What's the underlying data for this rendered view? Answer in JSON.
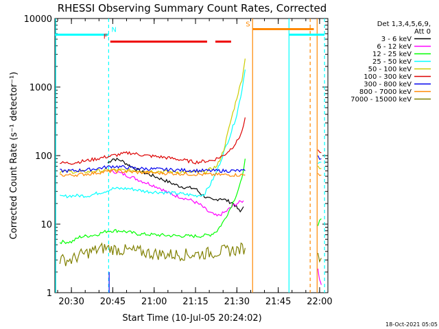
{
  "chart_data": {
    "type": "line",
    "title": "RHESSI Observing Summary Count Rates, Corrected",
    "ylabel": "Corrected Count Rate (s⁻¹ detector⁻¹)",
    "xlabel": "Start Time (10-Jul-05 20:24:02)",
    "timestamp": "18-Oct-2021 05:05",
    "y_scale": "log",
    "ylim": [
      1,
      10000
    ],
    "xlim": [
      20.4,
      22.05
    ],
    "x_ticks": [
      {
        "value": 20.5,
        "label": "20:30"
      },
      {
        "value": 20.75,
        "label": "20:45"
      },
      {
        "value": 21.0,
        "label": "21:00"
      },
      {
        "value": 21.25,
        "label": "21:15"
      },
      {
        "value": 21.5,
        "label": "21:30"
      },
      {
        "value": 21.75,
        "label": "21:45"
      },
      {
        "value": 22.0,
        "label": "22:00"
      }
    ],
    "y_ticks": [
      {
        "value": 1,
        "label": "1"
      },
      {
        "value": 10,
        "label": "10"
      },
      {
        "value": 100,
        "label": "100"
      },
      {
        "value": 1000,
        "label": "1000"
      },
      {
        "value": 10000,
        "label": "10000"
      }
    ],
    "legend": {
      "position": "right",
      "header_lines": [
        "Det 1,3,4,5,6,9,",
        "Att 0"
      ]
    },
    "series": [
      {
        "name": "3 - 6 keV",
        "color": "#000000",
        "segments": [
          [
            [
              20.72,
              78
            ],
            [
              20.75,
              90
            ],
            [
              20.8,
              85
            ],
            [
              20.85,
              72
            ],
            [
              20.9,
              62
            ],
            [
              20.95,
              55
            ],
            [
              21.0,
              50
            ],
            [
              21.05,
              45
            ],
            [
              21.1,
              40
            ],
            [
              21.15,
              36
            ],
            [
              21.2,
              34
            ],
            [
              21.25,
              33
            ],
            [
              21.28,
              28
            ],
            [
              21.32,
              24
            ],
            [
              21.36,
              22
            ],
            [
              21.4,
              24
            ],
            [
              21.44,
              22
            ],
            [
              21.48,
              20
            ],
            [
              21.52,
              15
            ],
            [
              21.54,
              18
            ]
          ]
        ]
      },
      {
        "name": "6 - 12 keV",
        "color": "#ff00ff",
        "segments": [
          [
            [
              20.73,
              60
            ],
            [
              20.78,
              57
            ],
            [
              20.83,
              52
            ],
            [
              20.88,
              47
            ],
            [
              20.93,
              42
            ],
            [
              20.98,
              38
            ],
            [
              21.03,
              34
            ],
            [
              21.08,
              29
            ],
            [
              21.13,
              26
            ],
            [
              21.18,
              24
            ],
            [
              21.23,
              22
            ],
            [
              21.28,
              19
            ],
            [
              21.33,
              15
            ],
            [
              21.38,
              13
            ],
            [
              21.43,
              15
            ],
            [
              21.47,
              18
            ],
            [
              21.5,
              20
            ],
            [
              21.54,
              22
            ]
          ],
          [
            [
              21.99,
              2.2
            ],
            [
              22.0,
              1.6
            ],
            [
              22.01,
              1.3
            ]
          ]
        ]
      },
      {
        "name": "12 - 25 keV",
        "color": "#00ff00",
        "segments": [
          [
            [
              20.43,
              5.5
            ],
            [
              20.5,
              5.5
            ],
            [
              20.55,
              6.5
            ],
            [
              20.65,
              7
            ],
            [
              20.72,
              8
            ],
            [
              20.8,
              8
            ],
            [
              20.9,
              7.2
            ],
            [
              21.0,
              7
            ],
            [
              21.1,
              6.8
            ],
            [
              21.2,
              6.7
            ],
            [
              21.28,
              6.7
            ],
            [
              21.34,
              7
            ],
            [
              21.38,
              8
            ],
            [
              21.42,
              11
            ],
            [
              21.46,
              17
            ],
            [
              21.5,
              28
            ],
            [
              21.53,
              45
            ],
            [
              21.55,
              90
            ]
          ],
          [
            [
              21.99,
              10
            ],
            [
              22.01,
              12
            ]
          ]
        ]
      },
      {
        "name": "25 - 50 keV",
        "color": "#00ffff",
        "segments": [
          [
            [
              20.43,
              25
            ],
            [
              20.5,
              26
            ],
            [
              20.6,
              26
            ],
            [
              20.7,
              30
            ],
            [
              20.75,
              33
            ],
            [
              20.85,
              33
            ],
            [
              20.95,
              30
            ],
            [
              21.05,
              29
            ],
            [
              21.15,
              28
            ],
            [
              21.25,
              26
            ],
            [
              21.3,
              27
            ],
            [
              21.34,
              38
            ],
            [
              21.38,
              60
            ],
            [
              21.42,
              110
            ],
            [
              21.46,
              200
            ],
            [
              21.5,
              400
            ],
            [
              21.53,
              900
            ],
            [
              21.55,
              1800
            ]
          ],
          [
            [
              21.99,
              80
            ],
            [
              22.01,
              80
            ]
          ]
        ]
      },
      {
        "name": "50 - 100 keV",
        "color": "#cccc00",
        "segments": [
          [
            [
              20.43,
              58
            ],
            [
              20.5,
              58
            ],
            [
              20.6,
              58
            ],
            [
              20.75,
              62
            ],
            [
              20.9,
              60
            ],
            [
              21.1,
              58
            ],
            [
              21.3,
              57
            ],
            [
              21.38,
              70
            ],
            [
              21.42,
              120
            ],
            [
              21.46,
              300
            ],
            [
              21.5,
              700
            ],
            [
              21.53,
              1300
            ],
            [
              21.55,
              2600
            ]
          ],
          [
            [
              21.99,
              70
            ],
            [
              22.01,
              65
            ]
          ]
        ]
      },
      {
        "name": "100 - 300 keV",
        "color": "#dd0000",
        "segments": [
          [
            [
              20.43,
              78
            ],
            [
              20.5,
              78
            ],
            [
              20.6,
              85
            ],
            [
              20.75,
              100
            ],
            [
              20.85,
              110
            ],
            [
              20.95,
              100
            ],
            [
              21.05,
              95
            ],
            [
              21.15,
              88
            ],
            [
              21.25,
              80
            ],
            [
              21.35,
              85
            ],
            [
              21.42,
              100
            ],
            [
              21.47,
              130
            ],
            [
              21.5,
              160
            ],
            [
              21.53,
              220
            ],
            [
              21.55,
              360
            ]
          ],
          [
            [
              21.99,
              115
            ],
            [
              22.01,
              110
            ]
          ]
        ]
      },
      {
        "name": "300 - 800 keV",
        "color": "#0000ee",
        "segments": [
          [
            [
              20.43,
              60
            ],
            [
              20.5,
              60
            ],
            [
              20.6,
              62
            ],
            [
              20.75,
              70
            ],
            [
              20.9,
              65
            ],
            [
              21.1,
              62
            ],
            [
              21.3,
              60
            ],
            [
              21.55,
              60
            ]
          ],
          [
            [
              21.99,
              95
            ],
            [
              22.01,
              90
            ]
          ]
        ]
      },
      {
        "name": "800 - 7000 keV",
        "color": "#ff8800",
        "segments": [
          [
            [
              20.43,
              52
            ],
            [
              20.5,
              52
            ],
            [
              20.6,
              54
            ],
            [
              20.75,
              60
            ],
            [
              20.9,
              57
            ],
            [
              21.1,
              55
            ],
            [
              21.3,
              53
            ],
            [
              21.55,
              52
            ]
          ],
          [
            [
              21.99,
              55
            ],
            [
              22.01,
              52
            ]
          ]
        ]
      },
      {
        "name": "7000 - 15000 keV",
        "color": "#808000",
        "segments": [
          [
            [
              20.43,
              3
            ],
            [
              20.5,
              3
            ],
            [
              20.55,
              3.5
            ],
            [
              20.62,
              4
            ],
            [
              20.7,
              4.5
            ],
            [
              20.8,
              4.2
            ],
            [
              20.9,
              4
            ],
            [
              21.0,
              3.7
            ],
            [
              21.1,
              3.6
            ],
            [
              21.2,
              3.6
            ],
            [
              21.3,
              3.7
            ],
            [
              21.4,
              4
            ],
            [
              21.5,
              4.2
            ],
            [
              21.55,
              4.5
            ]
          ],
          [
            [
              21.99,
              3.3
            ],
            [
              22.01,
              3.2
            ]
          ]
        ]
      }
    ],
    "vertical_lines": [
      {
        "x": 20.725,
        "color": "#00ffff",
        "style": "dashed"
      },
      {
        "x": 20.728,
        "color": "#0000ee",
        "style": "solid",
        "ylim": [
          1,
          2
        ]
      },
      {
        "x": 20.405,
        "color": "#00ffff",
        "style": "solid"
      },
      {
        "x": 21.595,
        "color": "#ff8800",
        "style": "solid"
      },
      {
        "x": 21.815,
        "color": "#00ffff",
        "style": "solid"
      },
      {
        "x": 21.943,
        "color": "#ff8800",
        "style": "dashed"
      },
      {
        "x": 21.985,
        "color": "#ff8800",
        "style": "solid"
      },
      {
        "x": 22.03,
        "color": "#00ffff",
        "style": "dashed"
      }
    ],
    "flag_bars": [
      {
        "label": "N",
        "color": "#00ffff",
        "y": 5800,
        "segments": [
          [
            20.4,
            20.725
          ],
          [
            21.815,
            22.03
          ]
        ]
      },
      {
        "label": "F",
        "color": "#ee0000",
        "y": 4600,
        "segments": [
          [
            20.735,
            21.32
          ],
          [
            21.37,
            21.465
          ]
        ]
      },
      {
        "label": "S",
        "color": "#ff8800",
        "y": 7000,
        "segments": [
          [
            21.595,
            21.965
          ]
        ]
      }
    ]
  }
}
